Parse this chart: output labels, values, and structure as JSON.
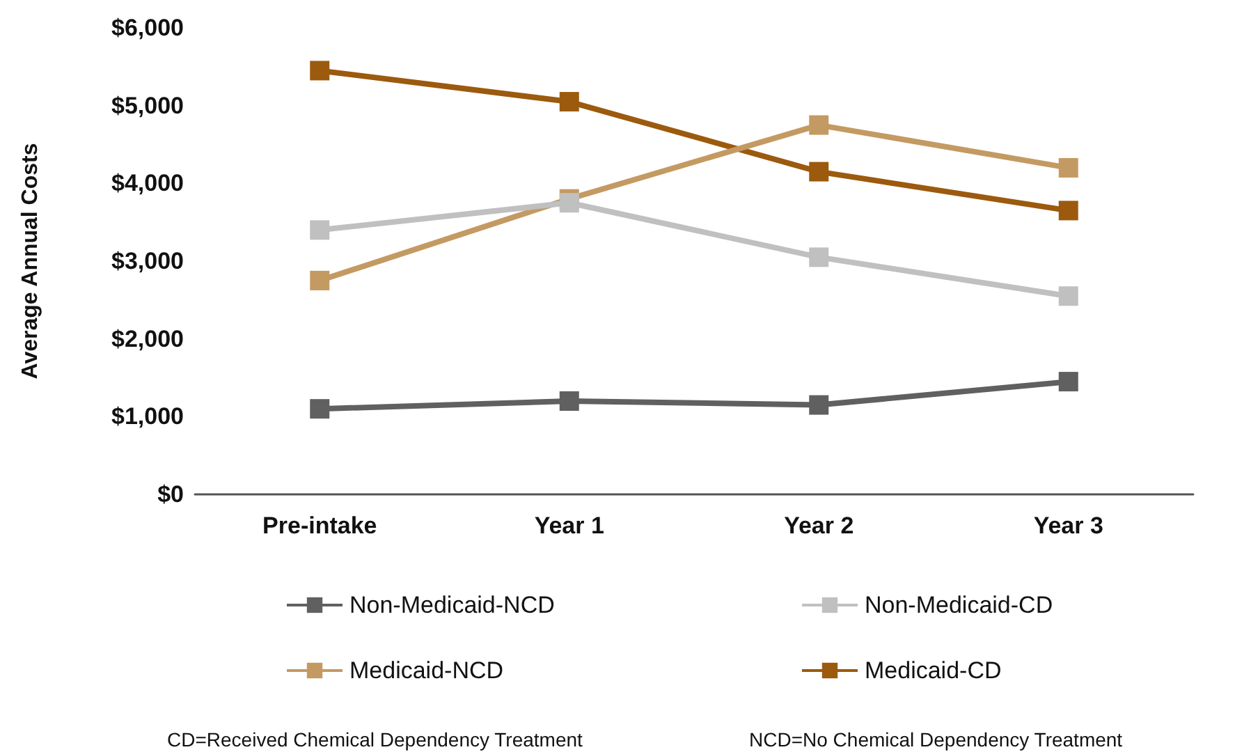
{
  "chart_data": {
    "type": "line",
    "ylabel": "Average Annual Costs",
    "categories": [
      "Pre-intake",
      "Year 1",
      "Year 2",
      "Year 3"
    ],
    "series": [
      {
        "name": "Non-Medicaid-NCD",
        "color": "#606060",
        "values": [
          1100,
          1200,
          1150,
          1450
        ]
      },
      {
        "name": "Non-Medicaid-CD",
        "color": "#c0c0c0",
        "values": [
          3400,
          3750,
          3050,
          2550
        ]
      },
      {
        "name": "Medicaid-NCD",
        "color": "#c49a63",
        "values": [
          2750,
          3800,
          4750,
          4200
        ]
      },
      {
        "name": "Medicaid-CD",
        "color": "#9c5a0e",
        "values": [
          5450,
          5050,
          4150,
          3650
        ]
      }
    ],
    "ylim": [
      0,
      6000
    ],
    "yticks": [
      {
        "value": 0,
        "label": "$0"
      },
      {
        "value": 1000,
        "label": "$1,000"
      },
      {
        "value": 2000,
        "label": "$2,000"
      },
      {
        "value": 3000,
        "label": "$3,000"
      },
      {
        "value": 4000,
        "label": "$4,000"
      },
      {
        "value": 5000,
        "label": "$5,000"
      },
      {
        "value": 6000,
        "label": "$6,000"
      }
    ],
    "marker": "square",
    "legend": "bottom",
    "grid": false,
    "annotations": [
      "CD=Received Chemical Dependency Treatment",
      "NCD=No Chemical Dependency Treatment"
    ]
  }
}
